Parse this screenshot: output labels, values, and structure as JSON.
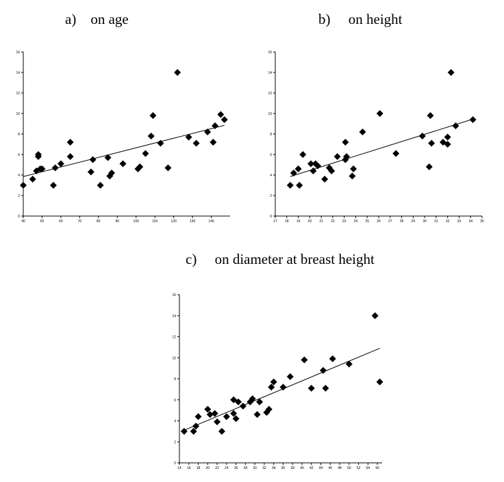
{
  "chart_data": [
    {
      "type": "scatter",
      "title": "a)    on age",
      "xlim": [
        40,
        150
      ],
      "ylim": [
        0,
        16
      ],
      "xticks": [
        "40",
        "50",
        "60",
        "70",
        "80",
        "90",
        "100",
        "110",
        "120",
        "130",
        "140"
      ],
      "yticks": [
        "0",
        "2",
        "4",
        "6",
        "8",
        "10",
        "12",
        "14",
        "16"
      ],
      "points": [
        [
          40,
          3.0
        ],
        [
          45,
          3.6
        ],
        [
          47,
          4.4
        ],
        [
          48,
          5.8
        ],
        [
          48,
          6.0
        ],
        [
          49,
          4.6
        ],
        [
          50,
          4.6
        ],
        [
          56,
          3.0
        ],
        [
          57,
          4.7
        ],
        [
          60,
          5.1
        ],
        [
          65,
          5.8
        ],
        [
          65,
          7.2
        ],
        [
          76,
          4.3
        ],
        [
          77,
          5.5
        ],
        [
          81,
          3.0
        ],
        [
          85,
          5.7
        ],
        [
          86,
          3.9
        ],
        [
          87,
          4.2
        ],
        [
          93,
          5.1
        ],
        [
          101,
          4.6
        ],
        [
          102,
          4.8
        ],
        [
          105,
          6.1
        ],
        [
          108,
          7.8
        ],
        [
          109,
          9.8
        ],
        [
          113,
          7.1
        ],
        [
          117,
          4.7
        ],
        [
          122,
          14.0
        ],
        [
          128,
          7.7
        ],
        [
          132,
          7.1
        ],
        [
          138,
          8.2
        ],
        [
          141,
          7.2
        ],
        [
          142,
          8.8
        ],
        [
          145,
          9.9
        ],
        [
          147,
          9.4
        ]
      ],
      "trendline": [
        [
          40,
          3.85
        ],
        [
          147,
          8.85
        ]
      ],
      "grid": false,
      "marker": "diamond",
      "color": "#000000"
    },
    {
      "type": "scatter",
      "title": "b)     on height",
      "xlim": [
        17,
        35
      ],
      "ylim": [
        0,
        16
      ],
      "xticks": [
        "17",
        "18",
        "19",
        "20",
        "21",
        "22",
        "23",
        "24",
        "25",
        "26",
        "27",
        "28",
        "29",
        "30",
        "31",
        "32",
        "33",
        "34",
        "35"
      ],
      "yticks": [
        "0",
        "2",
        "4",
        "6",
        "8",
        "10",
        "12",
        "14",
        "16"
      ],
      "points": [
        [
          18.3,
          3.0
        ],
        [
          18.6,
          4.2
        ],
        [
          19.0,
          4.6
        ],
        [
          19.1,
          3.0
        ],
        [
          19.4,
          6.0
        ],
        [
          20.1,
          5.1
        ],
        [
          20.3,
          4.4
        ],
        [
          20.5,
          5.1
        ],
        [
          20.7,
          4.9
        ],
        [
          21.3,
          3.6
        ],
        [
          21.7,
          4.7
        ],
        [
          21.9,
          4.4
        ],
        [
          22.4,
          5.8
        ],
        [
          23.1,
          5.5
        ],
        [
          23.1,
          7.2
        ],
        [
          23.2,
          5.8
        ],
        [
          23.7,
          3.9
        ],
        [
          23.8,
          4.6
        ],
        [
          24.6,
          8.2
        ],
        [
          26.1,
          10.0
        ],
        [
          27.5,
          6.1
        ],
        [
          29.8,
          7.8
        ],
        [
          30.4,
          4.8
        ],
        [
          30.5,
          9.8
        ],
        [
          30.6,
          7.1
        ],
        [
          31.6,
          7.2
        ],
        [
          32.0,
          7.7
        ],
        [
          32.0,
          7.0
        ],
        [
          32.3,
          14.0
        ],
        [
          32.7,
          8.8
        ],
        [
          34.2,
          9.4
        ]
      ],
      "trendline": [
        [
          18.3,
          3.85
        ],
        [
          34.2,
          9.45
        ]
      ],
      "grid": false,
      "marker": "diamond",
      "color": "#000000"
    },
    {
      "type": "scatter",
      "title": "c)     on diameter at breast height",
      "xlim": [
        14,
        57
      ],
      "ylim": [
        0,
        16
      ],
      "xticks": [
        "14",
        "16",
        "18",
        "20",
        "22",
        "24",
        "26",
        "28",
        "30",
        "32",
        "34",
        "36",
        "38",
        "40",
        "42",
        "44",
        "46",
        "48",
        "50",
        "52",
        "54",
        "56"
      ],
      "yticks": [
        "0",
        "2",
        "4",
        "6",
        "8",
        "10",
        "12",
        "14",
        "16"
      ],
      "points": [
        [
          15.0,
          3.0
        ],
        [
          17.0,
          3.0
        ],
        [
          17.5,
          3.5
        ],
        [
          18.0,
          4.4
        ],
        [
          20.0,
          5.1
        ],
        [
          20.5,
          4.6
        ],
        [
          21.5,
          4.7
        ],
        [
          22.0,
          3.9
        ],
        [
          23.0,
          3.0
        ],
        [
          24.0,
          4.4
        ],
        [
          25.5,
          6.0
        ],
        [
          25.5,
          4.7
        ],
        [
          26.0,
          4.2
        ],
        [
          26.5,
          5.8
        ],
        [
          27.5,
          5.4
        ],
        [
          29.0,
          5.8
        ],
        [
          29.5,
          6.1
        ],
        [
          30.5,
          4.6
        ],
        [
          31.0,
          5.8
        ],
        [
          32.5,
          4.8
        ],
        [
          33.0,
          5.1
        ],
        [
          33.5,
          7.2
        ],
        [
          34.0,
          7.7
        ],
        [
          36.0,
          7.2
        ],
        [
          37.5,
          8.2
        ],
        [
          40.5,
          9.8
        ],
        [
          42.0,
          7.1
        ],
        [
          44.5,
          8.8
        ],
        [
          45.0,
          7.1
        ],
        [
          46.5,
          9.9
        ],
        [
          50.0,
          9.4
        ],
        [
          55.5,
          14.0
        ],
        [
          56.5,
          7.7
        ]
      ],
      "trendline": [
        [
          15.0,
          3.1
        ],
        [
          56.5,
          10.9
        ]
      ],
      "grid": false,
      "marker": "diamond",
      "color": "#000000"
    }
  ]
}
